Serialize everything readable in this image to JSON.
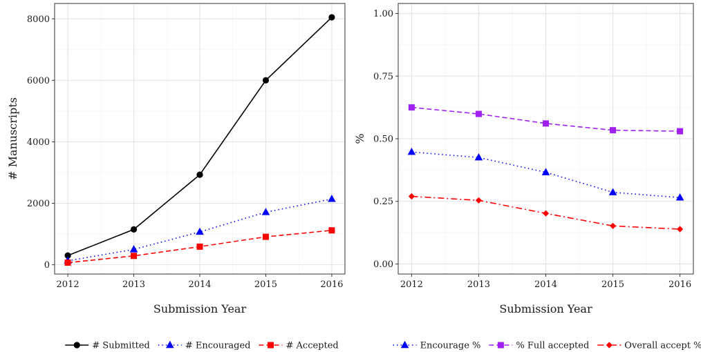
{
  "chart_data": [
    {
      "type": "line",
      "xlabel": "Submission Year",
      "ylabel": "# Manuscripts",
      "x": [
        2012,
        2013,
        2014,
        2015,
        2016
      ],
      "xlim": [
        2011.8,
        2016.2
      ],
      "ylim": [
        -300,
        8500
      ],
      "yticks": [
        0,
        2000,
        4000,
        6000,
        8000
      ],
      "ytick_labels": [
        "0",
        "2000",
        "4000",
        "6000",
        "8000"
      ],
      "xtick_labels": [
        "2012",
        "2013",
        "2014",
        "2015",
        "2016"
      ],
      "grid": true,
      "legend_position": "bottom",
      "series": [
        {
          "name": "# Submitted",
          "values": [
            300,
            1150,
            2930,
            6000,
            8050
          ],
          "color": "#000000",
          "dash": "solid",
          "marker": "circle"
        },
        {
          "name": "# Encouraged",
          "values": [
            130,
            500,
            1070,
            1710,
            2140
          ],
          "color": "#0000ff",
          "dash": "dotted",
          "marker": "triangle"
        },
        {
          "name": "# Accepted",
          "values": [
            70,
            290,
            590,
            910,
            1120
          ],
          "color": "#ff0000",
          "dash": "dashed",
          "marker": "square"
        }
      ]
    },
    {
      "type": "line",
      "xlabel": "Submission Year",
      "ylabel": "%",
      "x": [
        2012,
        2013,
        2014,
        2015,
        2016
      ],
      "xlim": [
        2011.8,
        2016.2
      ],
      "ylim": [
        -0.04,
        1.04
      ],
      "yticks": [
        0,
        0.25,
        0.5,
        0.75,
        1.0
      ],
      "ytick_labels": [
        "0.00",
        "0.25",
        "0.50",
        "0.75",
        "1.00"
      ],
      "xtick_labels": [
        "2012",
        "2013",
        "2014",
        "2015",
        "2016"
      ],
      "grid": true,
      "legend_position": "bottom",
      "series": [
        {
          "name": "Encourage %",
          "values": [
            0.447,
            0.425,
            0.366,
            0.286,
            0.265
          ],
          "color": "#0000ff",
          "dash": "dotted",
          "marker": "triangle"
        },
        {
          "name": "% Full accepted",
          "values": [
            0.625,
            0.599,
            0.561,
            0.534,
            0.53
          ],
          "color": "#a020f0",
          "dash": "dashed",
          "marker": "square"
        },
        {
          "name": "Overall accept %",
          "values": [
            0.27,
            0.254,
            0.202,
            0.152,
            0.139
          ],
          "color": "#ff0000",
          "dash": "dashdot",
          "marker": "diamond"
        }
      ]
    }
  ]
}
